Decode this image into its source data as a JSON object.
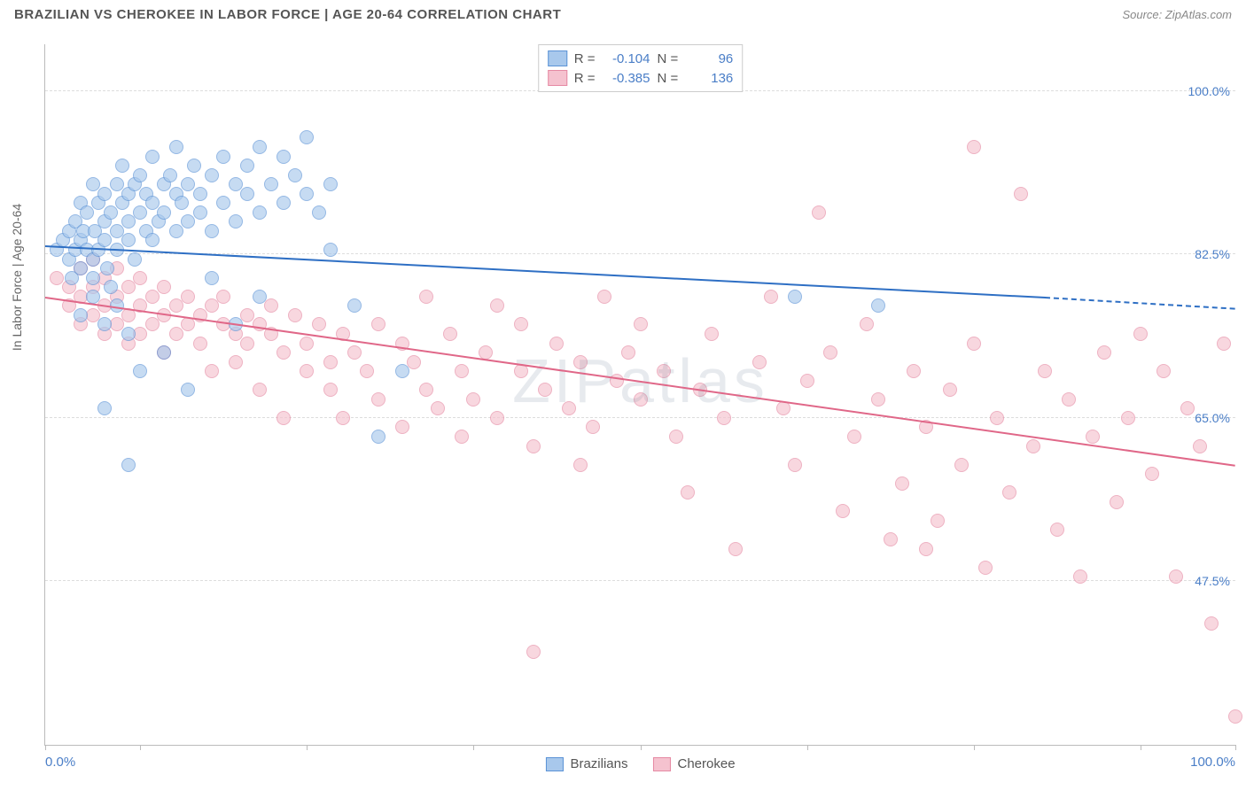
{
  "title": "BRAZILIAN VS CHEROKEE IN LABOR FORCE | AGE 20-64 CORRELATION CHART",
  "source": "Source: ZipAtlas.com",
  "watermark": "ZIPatlas",
  "yaxis_title": "In Labor Force | Age 20-64",
  "chart": {
    "type": "scatter",
    "background_color": "#ffffff",
    "grid_color": "#dddddd",
    "axis_color": "#bbbbbb",
    "label_color": "#4a7ec7",
    "title_fontsize": 15,
    "label_fontsize": 14,
    "marker_size": 16,
    "marker_opacity": 0.35,
    "xlim": [
      0,
      100
    ],
    "ylim": [
      30,
      105
    ],
    "x_tick_positions": [
      0,
      8,
      22,
      36,
      50,
      64,
      78,
      92,
      100
    ],
    "x_labels": {
      "min": "0.0%",
      "max": "100.0%"
    },
    "y_gridlines": [
      {
        "value": 47.5,
        "label": "47.5%"
      },
      {
        "value": 65.0,
        "label": "65.0%"
      },
      {
        "value": 82.5,
        "label": "82.5%"
      },
      {
        "value": 100.0,
        "label": "100.0%"
      }
    ],
    "series": [
      {
        "name": "Brazilians",
        "fill_color": "#a8c8ec",
        "stroke_color": "#5b93d6",
        "line_color": "#2e6fc4",
        "R": "-0.104",
        "N": "96",
        "trend": {
          "x1": 0,
          "y1": 83.5,
          "x2": 84,
          "y2": 78.0,
          "dash_to": 100,
          "dash_y": 76.8
        },
        "points": [
          [
            1,
            83
          ],
          [
            1.5,
            84
          ],
          [
            2,
            82
          ],
          [
            2,
            85
          ],
          [
            2.2,
            80
          ],
          [
            2.5,
            86
          ],
          [
            2.5,
            83
          ],
          [
            3,
            84
          ],
          [
            3,
            81
          ],
          [
            3,
            88
          ],
          [
            3.2,
            85
          ],
          [
            3.5,
            83
          ],
          [
            3.5,
            87
          ],
          [
            4,
            82
          ],
          [
            4,
            90
          ],
          [
            4,
            80
          ],
          [
            4.2,
            85
          ],
          [
            4.5,
            88
          ],
          [
            4.5,
            83
          ],
          [
            5,
            86
          ],
          [
            5,
            84
          ],
          [
            5,
            89
          ],
          [
            5.2,
            81
          ],
          [
            5.5,
            87
          ],
          [
            5.5,
            79
          ],
          [
            6,
            85
          ],
          [
            6,
            90
          ],
          [
            6,
            83
          ],
          [
            6.5,
            88
          ],
          [
            6.5,
            92
          ],
          [
            7,
            86
          ],
          [
            7,
            84
          ],
          [
            7,
            89
          ],
          [
            7.5,
            90
          ],
          [
            7.5,
            82
          ],
          [
            8,
            87
          ],
          [
            8,
            91
          ],
          [
            8.5,
            85
          ],
          [
            8.5,
            89
          ],
          [
            9,
            88
          ],
          [
            9,
            93
          ],
          [
            9,
            84
          ],
          [
            9.5,
            86
          ],
          [
            10,
            90
          ],
          [
            10,
            87
          ],
          [
            10.5,
            91
          ],
          [
            11,
            89
          ],
          [
            11,
            85
          ],
          [
            11,
            94
          ],
          [
            11.5,
            88
          ],
          [
            12,
            86
          ],
          [
            12,
            90
          ],
          [
            12.5,
            92
          ],
          [
            13,
            87
          ],
          [
            13,
            89
          ],
          [
            14,
            91
          ],
          [
            14,
            85
          ],
          [
            15,
            88
          ],
          [
            15,
            93
          ],
          [
            16,
            90
          ],
          [
            16,
            86
          ],
          [
            17,
            89
          ],
          [
            17,
            92
          ],
          [
            18,
            87
          ],
          [
            18,
            94
          ],
          [
            19,
            90
          ],
          [
            20,
            93
          ],
          [
            20,
            88
          ],
          [
            21,
            91
          ],
          [
            22,
            95
          ],
          [
            22,
            89
          ],
          [
            23,
            87
          ],
          [
            24,
            90
          ],
          [
            3,
            76
          ],
          [
            4,
            78
          ],
          [
            5,
            75
          ],
          [
            6,
            77
          ],
          [
            7,
            74
          ],
          [
            5,
            66
          ],
          [
            7,
            60
          ],
          [
            8,
            70
          ],
          [
            10,
            72
          ],
          [
            12,
            68
          ],
          [
            14,
            80
          ],
          [
            16,
            75
          ],
          [
            18,
            78
          ],
          [
            24,
            83
          ],
          [
            26,
            77
          ],
          [
            28,
            63
          ],
          [
            30,
            70
          ],
          [
            63,
            78
          ],
          [
            70,
            77
          ]
        ]
      },
      {
        "name": "Cherokee",
        "fill_color": "#f5c2cf",
        "stroke_color": "#e589a3",
        "line_color": "#e06788",
        "R": "-0.385",
        "N": "136",
        "trend": {
          "x1": 0,
          "y1": 78.0,
          "x2": 100,
          "y2": 60.0
        },
        "points": [
          [
            1,
            80
          ],
          [
            2,
            79
          ],
          [
            2,
            77
          ],
          [
            3,
            81
          ],
          [
            3,
            78
          ],
          [
            3,
            75
          ],
          [
            4,
            79
          ],
          [
            4,
            76
          ],
          [
            4,
            82
          ],
          [
            5,
            80
          ],
          [
            5,
            77
          ],
          [
            5,
            74
          ],
          [
            6,
            78
          ],
          [
            6,
            81
          ],
          [
            6,
            75
          ],
          [
            7,
            79
          ],
          [
            7,
            76
          ],
          [
            7,
            73
          ],
          [
            8,
            80
          ],
          [
            8,
            77
          ],
          [
            8,
            74
          ],
          [
            9,
            78
          ],
          [
            9,
            75
          ],
          [
            10,
            79
          ],
          [
            10,
            76
          ],
          [
            10,
            72
          ],
          [
            11,
            77
          ],
          [
            11,
            74
          ],
          [
            12,
            78
          ],
          [
            12,
            75
          ],
          [
            13,
            76
          ],
          [
            13,
            73
          ],
          [
            14,
            77
          ],
          [
            14,
            70
          ],
          [
            15,
            75
          ],
          [
            15,
            78
          ],
          [
            16,
            74
          ],
          [
            16,
            71
          ],
          [
            17,
            76
          ],
          [
            17,
            73
          ],
          [
            18,
            75
          ],
          [
            18,
            68
          ],
          [
            19,
            74
          ],
          [
            19,
            77
          ],
          [
            20,
            72
          ],
          [
            20,
            65
          ],
          [
            21,
            76
          ],
          [
            22,
            73
          ],
          [
            22,
            70
          ],
          [
            23,
            75
          ],
          [
            24,
            71
          ],
          [
            24,
            68
          ],
          [
            25,
            74
          ],
          [
            25,
            65
          ],
          [
            26,
            72
          ],
          [
            27,
            70
          ],
          [
            28,
            67
          ],
          [
            28,
            75
          ],
          [
            30,
            73
          ],
          [
            30,
            64
          ],
          [
            31,
            71
          ],
          [
            32,
            68
          ],
          [
            32,
            78
          ],
          [
            33,
            66
          ],
          [
            34,
            74
          ],
          [
            35,
            70
          ],
          [
            35,
            63
          ],
          [
            36,
            67
          ],
          [
            37,
            72
          ],
          [
            38,
            65
          ],
          [
            38,
            77
          ],
          [
            40,
            70
          ],
          [
            40,
            75
          ],
          [
            41,
            62
          ],
          [
            42,
            68
          ],
          [
            43,
            73
          ],
          [
            44,
            66
          ],
          [
            45,
            71
          ],
          [
            45,
            60
          ],
          [
            46,
            64
          ],
          [
            47,
            78
          ],
          [
            48,
            69
          ],
          [
            49,
            72
          ],
          [
            50,
            67
          ],
          [
            50,
            75
          ],
          [
            52,
            70
          ],
          [
            53,
            63
          ],
          [
            54,
            57
          ],
          [
            55,
            68
          ],
          [
            56,
            74
          ],
          [
            57,
            65
          ],
          [
            58,
            51
          ],
          [
            60,
            71
          ],
          [
            61,
            78
          ],
          [
            62,
            66
          ],
          [
            63,
            60
          ],
          [
            64,
            69
          ],
          [
            65,
            87
          ],
          [
            66,
            72
          ],
          [
            67,
            55
          ],
          [
            68,
            63
          ],
          [
            69,
            75
          ],
          [
            70,
            67
          ],
          [
            71,
            52
          ],
          [
            72,
            58
          ],
          [
            73,
            70
          ],
          [
            74,
            64
          ],
          [
            75,
            54
          ],
          [
            76,
            68
          ],
          [
            77,
            60
          ],
          [
            78,
            73
          ],
          [
            79,
            49
          ],
          [
            80,
            65
          ],
          [
            81,
            57
          ],
          [
            82,
            89
          ],
          [
            83,
            62
          ],
          [
            84,
            70
          ],
          [
            85,
            53
          ],
          [
            86,
            67
          ],
          [
            87,
            48
          ],
          [
            88,
            63
          ],
          [
            89,
            72
          ],
          [
            90,
            56
          ],
          [
            91,
            65
          ],
          [
            92,
            74
          ],
          [
            93,
            59
          ],
          [
            94,
            70
          ],
          [
            95,
            48
          ],
          [
            96,
            66
          ],
          [
            97,
            62
          ],
          [
            98,
            43
          ],
          [
            99,
            73
          ],
          [
            100,
            33
          ],
          [
            41,
            40
          ],
          [
            78,
            94
          ],
          [
            74,
            51
          ]
        ]
      }
    ]
  },
  "legend_bottom": [
    {
      "label": "Brazilians",
      "series_idx": 0
    },
    {
      "label": "Cherokee",
      "series_idx": 1
    }
  ]
}
